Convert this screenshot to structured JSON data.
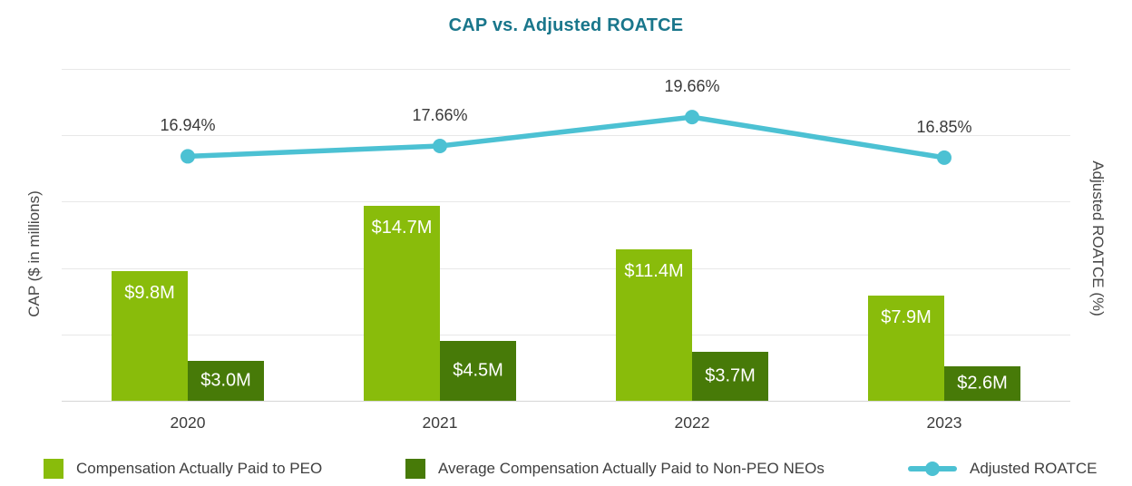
{
  "title": "CAP vs. Adjusted ROATCE",
  "legend": [
    {
      "label": "Compensation Actually Paid to PEO",
      "marker": "square",
      "color": "#89bc0b"
    },
    {
      "label": "Average Compensation Actually Paid to Non-PEO NEOs",
      "marker": "square",
      "color": "#477a08"
    },
    {
      "label": "Adjusted ROATCE",
      "marker": "line-dot",
      "color": "#4cc1d3"
    }
  ],
  "colors": {
    "title": "#19768b",
    "peo_bar": "#89bc0b",
    "nonpeo_bar": "#477a08",
    "roatce_line": "#4cc1d3",
    "gridline": "#e8e8e8",
    "text": "#3c3c3c"
  },
  "chart_data": {
    "type": "combo_bar_line",
    "title": "CAP vs. Adjusted ROATCE",
    "categories": [
      "2020",
      "2021",
      "2022",
      "2023"
    ],
    "series": [
      {
        "name": "Compensation Actually Paid to PEO",
        "type": "bar",
        "axis": "left",
        "color": "#89bc0b",
        "values": [
          9.8,
          14.7,
          11.4,
          7.9
        ],
        "labels": [
          "$9.8M",
          "$14.7M",
          "$11.4M",
          "$7.9M"
        ]
      },
      {
        "name": "Average Compensation Actually Paid to Non-PEO NEOs",
        "type": "bar",
        "axis": "left",
        "color": "#477a08",
        "values": [
          3.0,
          4.5,
          3.7,
          2.6
        ],
        "labels": [
          "$3.0M",
          "$4.5M",
          "$3.7M",
          "$2.6M"
        ]
      },
      {
        "name": "Adjusted ROATCE",
        "type": "line",
        "axis": "right",
        "color": "#4cc1d3",
        "values": [
          16.94,
          17.66,
          19.66,
          16.85
        ],
        "labels": [
          "16.94%",
          "17.66%",
          "19.66%",
          "16.85%"
        ]
      }
    ],
    "left_axis": {
      "label": "CAP ($ in millions)",
      "range": [
        0,
        25
      ],
      "gridline_step": 5,
      "ticks_visible": false
    },
    "right_axis": {
      "label": "Adjusted ROATCE (%)",
      "range_estimated": [
        0,
        23
      ],
      "ticks_visible": false
    },
    "grid": "horizontal",
    "legend_position": "bottom"
  }
}
